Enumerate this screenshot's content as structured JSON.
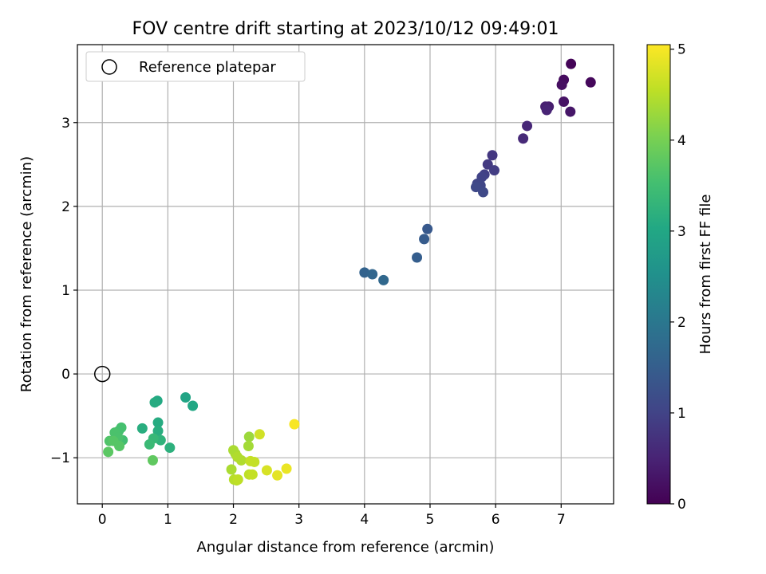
{
  "chart_data": {
    "type": "scatter",
    "title": "FOV centre drift starting at 2023/10/12 09:49:01",
    "xlabel": "Angular distance from reference (arcmin)",
    "ylabel": "Rotation from reference (arcmin)",
    "xlim": [
      -0.38,
      7.8
    ],
    "ylim": [
      -1.55,
      3.93
    ],
    "xticks": [
      0,
      1,
      2,
      3,
      4,
      5,
      6,
      7
    ],
    "yticks": [
      -1,
      0,
      1,
      2,
      3
    ],
    "xtick_labels": [
      "0",
      "1",
      "2",
      "3",
      "4",
      "5",
      "6",
      "7"
    ],
    "ytick_labels": [
      "−1",
      "0",
      "1",
      "2",
      "3"
    ],
    "grid": true,
    "legend": {
      "position": "top-left",
      "label": "Reference platepar"
    },
    "reference_point": {
      "x": 0.0,
      "y": 0.0
    },
    "colorbar": {
      "label": "Hours from first FF file",
      "min": 0,
      "max": 5.05,
      "ticks": [
        0,
        1,
        2,
        3,
        4,
        5
      ],
      "tick_labels": [
        "0",
        "1",
        "2",
        "3",
        "4",
        "5"
      ],
      "colormap": "viridis"
    },
    "series": [
      {
        "name": "FOV centre",
        "points": [
          {
            "x": 7.15,
            "y": 3.7,
            "c": 0.05
          },
          {
            "x": 7.45,
            "y": 3.48,
            "c": 0.1
          },
          {
            "x": 7.04,
            "y": 3.51,
            "c": 0.15
          },
          {
            "x": 7.01,
            "y": 3.45,
            "c": 0.2
          },
          {
            "x": 7.04,
            "y": 3.25,
            "c": 0.25
          },
          {
            "x": 7.14,
            "y": 3.13,
            "c": 0.3
          },
          {
            "x": 6.81,
            "y": 3.19,
            "c": 0.4
          },
          {
            "x": 6.76,
            "y": 3.19,
            "c": 0.45
          },
          {
            "x": 6.78,
            "y": 3.15,
            "c": 0.5
          },
          {
            "x": 6.48,
            "y": 2.96,
            "c": 0.55
          },
          {
            "x": 6.42,
            "y": 2.81,
            "c": 0.6
          },
          {
            "x": 5.95,
            "y": 2.61,
            "c": 0.8
          },
          {
            "x": 5.88,
            "y": 2.5,
            "c": 0.85
          },
          {
            "x": 5.98,
            "y": 2.43,
            "c": 0.9
          },
          {
            "x": 5.83,
            "y": 2.38,
            "c": 0.95
          },
          {
            "x": 5.79,
            "y": 2.35,
            "c": 1.0
          },
          {
            "x": 5.72,
            "y": 2.27,
            "c": 1.05
          },
          {
            "x": 5.77,
            "y": 2.25,
            "c": 1.05
          },
          {
            "x": 5.7,
            "y": 2.23,
            "c": 1.1
          },
          {
            "x": 5.81,
            "y": 2.17,
            "c": 1.1
          },
          {
            "x": 4.96,
            "y": 1.73,
            "c": 1.4
          },
          {
            "x": 4.91,
            "y": 1.61,
            "c": 1.45
          },
          {
            "x": 4.8,
            "y": 1.39,
            "c": 1.5
          },
          {
            "x": 4.0,
            "y": 1.21,
            "c": 1.6
          },
          {
            "x": 4.12,
            "y": 1.19,
            "c": 1.65
          },
          {
            "x": 4.29,
            "y": 1.12,
            "c": 1.7
          },
          {
            "x": 1.27,
            "y": -0.28,
            "c": 2.95
          },
          {
            "x": 1.38,
            "y": -0.38,
            "c": 3.0
          },
          {
            "x": 0.84,
            "y": -0.32,
            "c": 3.05
          },
          {
            "x": 0.8,
            "y": -0.34,
            "c": 3.1
          },
          {
            "x": 0.85,
            "y": -0.58,
            "c": 3.1
          },
          {
            "x": 0.61,
            "y": -0.65,
            "c": 3.15
          },
          {
            "x": 0.85,
            "y": -0.68,
            "c": 3.15
          },
          {
            "x": 1.03,
            "y": -0.88,
            "c": 3.2
          },
          {
            "x": 0.89,
            "y": -0.79,
            "c": 3.25
          },
          {
            "x": 0.78,
            "y": -0.77,
            "c": 3.35
          },
          {
            "x": 0.72,
            "y": -0.84,
            "c": 3.4
          },
          {
            "x": 0.31,
            "y": -0.79,
            "c": 3.5
          },
          {
            "x": 0.29,
            "y": -0.64,
            "c": 3.55
          },
          {
            "x": 0.25,
            "y": -0.68,
            "c": 3.55
          },
          {
            "x": 0.19,
            "y": -0.7,
            "c": 3.6
          },
          {
            "x": 0.24,
            "y": -0.76,
            "c": 3.6
          },
          {
            "x": 0.11,
            "y": -0.8,
            "c": 3.65
          },
          {
            "x": 0.17,
            "y": -0.8,
            "c": 3.7
          },
          {
            "x": 0.26,
            "y": -0.86,
            "c": 3.7
          },
          {
            "x": 0.09,
            "y": -0.93,
            "c": 3.75
          },
          {
            "x": 0.77,
            "y": -1.03,
            "c": 3.8
          },
          {
            "x": 2.24,
            "y": -0.75,
            "c": 4.3
          },
          {
            "x": 2.23,
            "y": -0.86,
            "c": 4.35
          },
          {
            "x": 2.0,
            "y": -0.91,
            "c": 4.4
          },
          {
            "x": 2.03,
            "y": -0.95,
            "c": 4.4
          },
          {
            "x": 2.06,
            "y": -0.99,
            "c": 4.45
          },
          {
            "x": 2.12,
            "y": -1.03,
            "c": 4.45
          },
          {
            "x": 1.97,
            "y": -1.14,
            "c": 4.4
          },
          {
            "x": 2.01,
            "y": -1.26,
            "c": 4.5
          },
          {
            "x": 2.05,
            "y": -1.27,
            "c": 4.5
          },
          {
            "x": 2.07,
            "y": -1.26,
            "c": 4.55
          },
          {
            "x": 2.24,
            "y": -1.2,
            "c": 4.55
          },
          {
            "x": 2.29,
            "y": -1.2,
            "c": 4.6
          },
          {
            "x": 2.26,
            "y": -1.04,
            "c": 4.6
          },
          {
            "x": 2.32,
            "y": -1.05,
            "c": 4.6
          },
          {
            "x": 2.4,
            "y": -0.72,
            "c": 4.7
          },
          {
            "x": 2.51,
            "y": -1.15,
            "c": 4.75
          },
          {
            "x": 2.67,
            "y": -1.21,
            "c": 4.85
          },
          {
            "x": 2.81,
            "y": -1.13,
            "c": 4.9
          },
          {
            "x": 2.93,
            "y": -0.6,
            "c": 5.0
          }
        ]
      }
    ]
  }
}
